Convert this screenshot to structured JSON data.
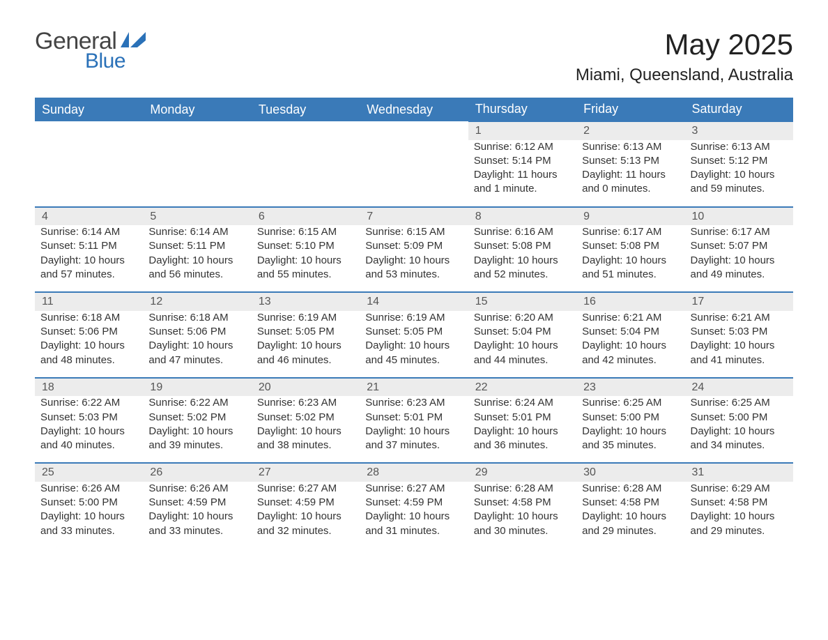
{
  "logo": {
    "text_general": "General",
    "text_blue": "Blue"
  },
  "title": {
    "month": "May 2025",
    "location": "Miami, Queensland, Australia"
  },
  "colors": {
    "header_bg": "#3a7ab8",
    "header_text": "#ffffff",
    "daynum_bg": "#ececec",
    "row_border": "#3a7ab8",
    "body_text": "#333333",
    "logo_blue": "#2a71b8",
    "page_bg": "#ffffff"
  },
  "columns": [
    "Sunday",
    "Monday",
    "Tuesday",
    "Wednesday",
    "Thursday",
    "Friday",
    "Saturday"
  ],
  "weeks": [
    {
      "days": [
        null,
        null,
        null,
        null,
        {
          "n": "1",
          "sunrise": "6:12 AM",
          "sunset": "5:14 PM",
          "daylight": "11 hours and 1 minute."
        },
        {
          "n": "2",
          "sunrise": "6:13 AM",
          "sunset": "5:13 PM",
          "daylight": "11 hours and 0 minutes."
        },
        {
          "n": "3",
          "sunrise": "6:13 AM",
          "sunset": "5:12 PM",
          "daylight": "10 hours and 59 minutes."
        }
      ]
    },
    {
      "days": [
        {
          "n": "4",
          "sunrise": "6:14 AM",
          "sunset": "5:11 PM",
          "daylight": "10 hours and 57 minutes."
        },
        {
          "n": "5",
          "sunrise": "6:14 AM",
          "sunset": "5:11 PM",
          "daylight": "10 hours and 56 minutes."
        },
        {
          "n": "6",
          "sunrise": "6:15 AM",
          "sunset": "5:10 PM",
          "daylight": "10 hours and 55 minutes."
        },
        {
          "n": "7",
          "sunrise": "6:15 AM",
          "sunset": "5:09 PM",
          "daylight": "10 hours and 53 minutes."
        },
        {
          "n": "8",
          "sunrise": "6:16 AM",
          "sunset": "5:08 PM",
          "daylight": "10 hours and 52 minutes."
        },
        {
          "n": "9",
          "sunrise": "6:17 AM",
          "sunset": "5:08 PM",
          "daylight": "10 hours and 51 minutes."
        },
        {
          "n": "10",
          "sunrise": "6:17 AM",
          "sunset": "5:07 PM",
          "daylight": "10 hours and 49 minutes."
        }
      ]
    },
    {
      "days": [
        {
          "n": "11",
          "sunrise": "6:18 AM",
          "sunset": "5:06 PM",
          "daylight": "10 hours and 48 minutes."
        },
        {
          "n": "12",
          "sunrise": "6:18 AM",
          "sunset": "5:06 PM",
          "daylight": "10 hours and 47 minutes."
        },
        {
          "n": "13",
          "sunrise": "6:19 AM",
          "sunset": "5:05 PM",
          "daylight": "10 hours and 46 minutes."
        },
        {
          "n": "14",
          "sunrise": "6:19 AM",
          "sunset": "5:05 PM",
          "daylight": "10 hours and 45 minutes."
        },
        {
          "n": "15",
          "sunrise": "6:20 AM",
          "sunset": "5:04 PM",
          "daylight": "10 hours and 44 minutes."
        },
        {
          "n": "16",
          "sunrise": "6:21 AM",
          "sunset": "5:04 PM",
          "daylight": "10 hours and 42 minutes."
        },
        {
          "n": "17",
          "sunrise": "6:21 AM",
          "sunset": "5:03 PM",
          "daylight": "10 hours and 41 minutes."
        }
      ]
    },
    {
      "days": [
        {
          "n": "18",
          "sunrise": "6:22 AM",
          "sunset": "5:03 PM",
          "daylight": "10 hours and 40 minutes."
        },
        {
          "n": "19",
          "sunrise": "6:22 AM",
          "sunset": "5:02 PM",
          "daylight": "10 hours and 39 minutes."
        },
        {
          "n": "20",
          "sunrise": "6:23 AM",
          "sunset": "5:02 PM",
          "daylight": "10 hours and 38 minutes."
        },
        {
          "n": "21",
          "sunrise": "6:23 AM",
          "sunset": "5:01 PM",
          "daylight": "10 hours and 37 minutes."
        },
        {
          "n": "22",
          "sunrise": "6:24 AM",
          "sunset": "5:01 PM",
          "daylight": "10 hours and 36 minutes."
        },
        {
          "n": "23",
          "sunrise": "6:25 AM",
          "sunset": "5:00 PM",
          "daylight": "10 hours and 35 minutes."
        },
        {
          "n": "24",
          "sunrise": "6:25 AM",
          "sunset": "5:00 PM",
          "daylight": "10 hours and 34 minutes."
        }
      ]
    },
    {
      "days": [
        {
          "n": "25",
          "sunrise": "6:26 AM",
          "sunset": "5:00 PM",
          "daylight": "10 hours and 33 minutes."
        },
        {
          "n": "26",
          "sunrise": "6:26 AM",
          "sunset": "4:59 PM",
          "daylight": "10 hours and 33 minutes."
        },
        {
          "n": "27",
          "sunrise": "6:27 AM",
          "sunset": "4:59 PM",
          "daylight": "10 hours and 32 minutes."
        },
        {
          "n": "28",
          "sunrise": "6:27 AM",
          "sunset": "4:59 PM",
          "daylight": "10 hours and 31 minutes."
        },
        {
          "n": "29",
          "sunrise": "6:28 AM",
          "sunset": "4:58 PM",
          "daylight": "10 hours and 30 minutes."
        },
        {
          "n": "30",
          "sunrise": "6:28 AM",
          "sunset": "4:58 PM",
          "daylight": "10 hours and 29 minutes."
        },
        {
          "n": "31",
          "sunrise": "6:29 AM",
          "sunset": "4:58 PM",
          "daylight": "10 hours and 29 minutes."
        }
      ]
    }
  ],
  "labels": {
    "sunrise": "Sunrise: ",
    "sunset": "Sunset: ",
    "daylight": "Daylight: "
  }
}
